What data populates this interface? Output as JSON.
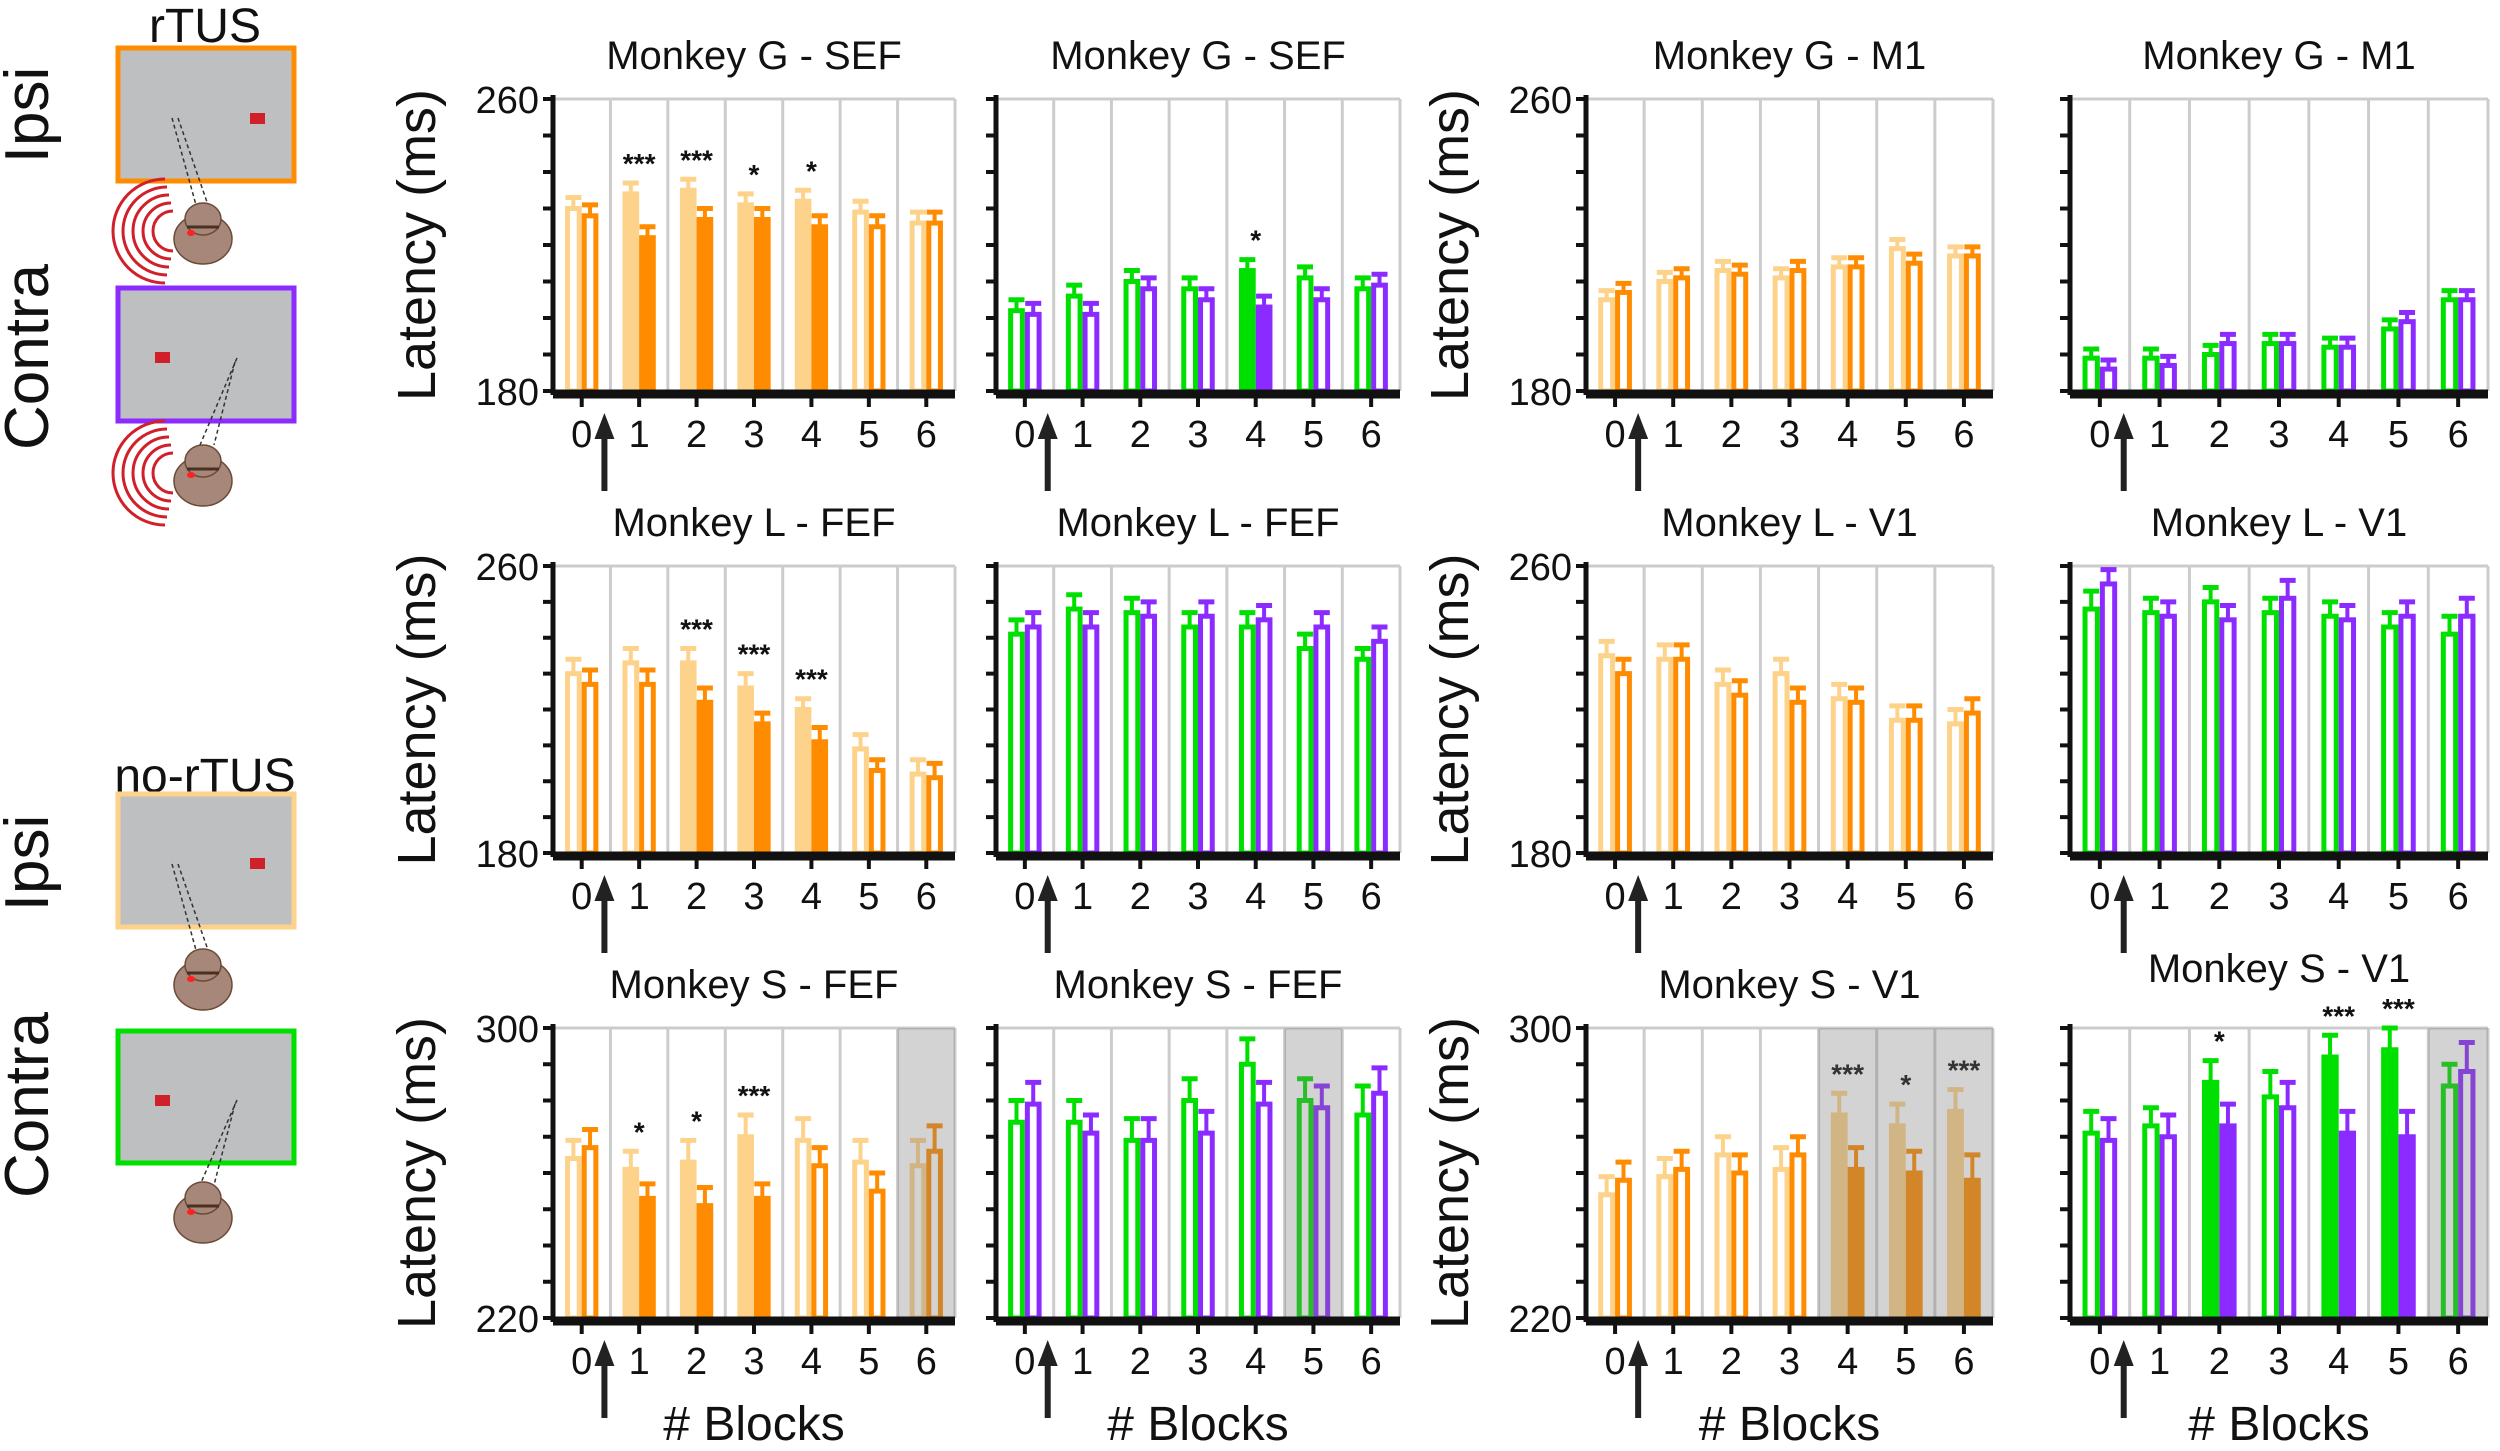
{
  "schematic": {
    "rtus_label": "rTUS",
    "no_rtus_label": "no-rTUS",
    "ipsi_label_1": "Ipsi",
    "contra_label_1": "Contra",
    "ipsi_label_2": "Ipsi",
    "contra_label_2": "Contra",
    "colors": {
      "rtus_ipsi": "#FF8C00",
      "rtus_contra": "#8B2BFF",
      "no_rtus_ipsi": "#FDD28A",
      "no_rtus_contra": "#00E000",
      "screen": "#BEBFC1",
      "target": "#D0202A",
      "head": "#A6877A",
      "waves": "#D0202A"
    }
  },
  "chart_data": [
    {
      "type": "bar",
      "title": "Monkey G - SEF",
      "ylabel": "Latency (ms)",
      "xlabel": "",
      "ylim": [
        180,
        260
      ],
      "yticklabels": [
        "180",
        "260"
      ],
      "categories": [
        "0",
        "1",
        "2",
        "3",
        "4",
        "5",
        "6"
      ],
      "shaded": [],
      "stars": [
        "",
        "***",
        "***",
        "*",
        "*",
        "",
        ""
      ],
      "series": [
        {
          "color": "#FDD28A",
          "values": [
            230,
            234,
            235,
            231,
            232,
            229,
            226
          ],
          "err": [
            3,
            3,
            3,
            3,
            3,
            3,
            3
          ],
          "filled": [
            0,
            1,
            1,
            1,
            1,
            0,
            0
          ]
        },
        {
          "color": "#FF8C00",
          "values": [
            228,
            222,
            227,
            227,
            225,
            225,
            226
          ],
          "err": [
            3,
            3,
            3,
            3,
            3,
            3,
            3
          ],
          "filled": [
            0,
            1,
            1,
            1,
            1,
            0,
            0
          ]
        }
      ]
    },
    {
      "type": "bar",
      "title": "Monkey G - SEF",
      "ylabel": "",
      "xlabel": "",
      "ylim": [
        180,
        260
      ],
      "yticklabels": [],
      "categories": [
        "0",
        "1",
        "2",
        "3",
        "4",
        "5",
        "6"
      ],
      "shaded": [],
      "stars": [
        "",
        "",
        "",
        "",
        "*",
        "",
        ""
      ],
      "series": [
        {
          "color": "#00E000",
          "values": [
            202,
            206,
            210,
            208,
            213,
            211,
            208
          ],
          "err": [
            3,
            3,
            3,
            3,
            3,
            3,
            3
          ],
          "filled": [
            0,
            0,
            0,
            0,
            1,
            0,
            0
          ]
        },
        {
          "color": "#8B2BFF",
          "values": [
            201,
            201,
            208,
            205,
            203,
            205,
            209
          ],
          "err": [
            3,
            3,
            3,
            3,
            3,
            3,
            3
          ],
          "filled": [
            0,
            0,
            0,
            0,
            1,
            0,
            0
          ]
        }
      ]
    },
    {
      "type": "bar",
      "title": "Monkey G - M1",
      "ylabel": "Latency (ms)",
      "xlabel": "",
      "ylim": [
        180,
        260
      ],
      "yticklabels": [
        "180",
        "260"
      ],
      "categories": [
        "0",
        "1",
        "2",
        "3",
        "4",
        "5",
        "6"
      ],
      "shaded": [],
      "stars": [
        "",
        "",
        "",
        "",
        "",
        "",
        ""
      ],
      "series": [
        {
          "color": "#FDD28A",
          "values": [
            205,
            210,
            213,
            211,
            214,
            219,
            217
          ],
          "err": [
            2.5,
            2.5,
            2.5,
            2.5,
            2.5,
            2.5,
            2.5
          ],
          "filled": [
            0,
            0,
            0,
            0,
            0,
            0,
            0
          ]
        },
        {
          "color": "#FF8C00",
          "values": [
            207,
            211,
            212,
            213,
            214,
            215,
            217
          ],
          "err": [
            2.5,
            2.5,
            2.5,
            2.5,
            2.5,
            2.5,
            2.5
          ],
          "filled": [
            0,
            0,
            0,
            0,
            0,
            0,
            0
          ]
        }
      ]
    },
    {
      "type": "bar",
      "title": "Monkey G - M1",
      "ylabel": "",
      "xlabel": "",
      "ylim": [
        180,
        260
      ],
      "yticklabels": [],
      "categories": [
        "0",
        "1",
        "2",
        "3",
        "4",
        "5",
        "6"
      ],
      "shaded": [],
      "stars": [
        "",
        "",
        "",
        "",
        "",
        "",
        ""
      ],
      "series": [
        {
          "color": "#00E000",
          "values": [
            189,
            189,
            190,
            193,
            192,
            197,
            205
          ],
          "err": [
            2.5,
            2.5,
            2.5,
            2.5,
            2.5,
            2.5,
            2.5
          ],
          "filled": [
            0,
            0,
            0,
            0,
            0,
            0,
            0
          ]
        },
        {
          "color": "#8B2BFF",
          "values": [
            186,
            187,
            193,
            193,
            192,
            199,
            205
          ],
          "err": [
            2.5,
            2.5,
            2.5,
            2.5,
            2.5,
            2.5,
            2.5
          ],
          "filled": [
            0,
            0,
            0,
            0,
            0,
            0,
            0
          ]
        }
      ]
    },
    {
      "type": "bar",
      "title": "Monkey L - FEF",
      "ylabel": "Latency (ms)",
      "xlabel": "",
      "ylim": [
        180,
        260
      ],
      "yticklabels": [
        "180",
        "260"
      ],
      "categories": [
        "0",
        "1",
        "2",
        "3",
        "4",
        "5",
        "6"
      ],
      "shaded": [],
      "stars": [
        "",
        "",
        "***",
        "***",
        "***",
        "",
        ""
      ],
      "series": [
        {
          "color": "#FDD28A",
          "values": [
            230,
            233,
            233,
            226,
            220,
            209,
            202
          ],
          "err": [
            4,
            4,
            4,
            4,
            3,
            4,
            4
          ],
          "filled": [
            0,
            0,
            1,
            1,
            1,
            0,
            0
          ]
        },
        {
          "color": "#FF8C00",
          "values": [
            227,
            227,
            222,
            216,
            211,
            203,
            201
          ],
          "err": [
            4,
            4,
            4,
            3,
            4,
            3,
            4
          ],
          "filled": [
            0,
            0,
            1,
            1,
            1,
            0,
            0
          ]
        }
      ]
    },
    {
      "type": "bar",
      "title": "Monkey L - FEF",
      "ylabel": "",
      "xlabel": "",
      "ylim": [
        180,
        260
      ],
      "yticklabels": [],
      "categories": [
        "0",
        "1",
        "2",
        "3",
        "4",
        "5",
        "6"
      ],
      "shaded": [],
      "stars": [
        "",
        "",
        "",
        "",
        "",
        "",
        ""
      ],
      "series": [
        {
          "color": "#00E000",
          "values": [
            241,
            248,
            247,
            243,
            243,
            237,
            234
          ],
          "err": [
            4,
            4,
            4,
            4,
            4,
            4,
            3
          ],
          "filled": [
            0,
            0,
            0,
            0,
            0,
            0,
            0
          ]
        },
        {
          "color": "#8B2BFF",
          "values": [
            243,
            243,
            246,
            246,
            245,
            243,
            239
          ],
          "err": [
            4,
            4,
            4,
            4,
            4,
            4,
            4
          ],
          "filled": [
            0,
            0,
            0,
            0,
            0,
            0,
            0
          ]
        }
      ]
    },
    {
      "type": "bar",
      "title": "Monkey L - V1",
      "ylabel": "Latency (ms)",
      "xlabel": "",
      "ylim": [
        180,
        260
      ],
      "yticklabels": [
        "180",
        "260"
      ],
      "categories": [
        "0",
        "1",
        "2",
        "3",
        "4",
        "5",
        "6"
      ],
      "shaded": [],
      "stars": [
        "",
        "",
        "",
        "",
        "",
        "",
        ""
      ],
      "series": [
        {
          "color": "#FDD28A",
          "values": [
            235,
            234,
            227,
            230,
            223,
            217,
            216
          ],
          "err": [
            4,
            4,
            4,
            4,
            4,
            4,
            4
          ],
          "filled": [
            0,
            0,
            0,
            0,
            0,
            0,
            0
          ]
        },
        {
          "color": "#FF8C00",
          "values": [
            230,
            234,
            224,
            222,
            222,
            217,
            219
          ],
          "err": [
            4,
            4,
            4,
            4,
            4,
            4,
            4
          ],
          "filled": [
            0,
            0,
            0,
            0,
            0,
            0,
            0
          ]
        }
      ]
    },
    {
      "type": "bar",
      "title": "Monkey L - V1",
      "ylabel": "",
      "xlabel": "",
      "ylim": [
        180,
        260
      ],
      "yticklabels": [],
      "categories": [
        "0",
        "1",
        "2",
        "3",
        "4",
        "5",
        "6"
      ],
      "shaded": [],
      "stars": [
        "",
        "",
        "",
        "",
        "",
        "",
        ""
      ],
      "series": [
        {
          "color": "#00E000",
          "values": [
            248,
            247,
            250,
            247,
            246,
            243,
            241
          ],
          "err": [
            5,
            4,
            4,
            4,
            4,
            4,
            5
          ],
          "filled": [
            0,
            0,
            0,
            0,
            0,
            0,
            0
          ]
        },
        {
          "color": "#8B2BFF",
          "values": [
            255,
            246,
            245,
            251,
            245,
            246,
            246
          ],
          "err": [
            4,
            4,
            4,
            5,
            4,
            4,
            5
          ],
          "filled": [
            0,
            0,
            0,
            0,
            0,
            0,
            0
          ]
        }
      ]
    },
    {
      "type": "bar",
      "title": "Monkey S - FEF",
      "ylabel": "Latency (ms)",
      "xlabel": "# Blocks",
      "ylim": [
        220,
        300
      ],
      "yticklabels": [
        "220",
        "300"
      ],
      "categories": [
        "0",
        "1",
        "2",
        "3",
        "4",
        "5",
        "6"
      ],
      "shaded": [
        6
      ],
      "stars": [
        "",
        "*",
        "*",
        "***",
        "",
        "",
        ""
      ],
      "series": [
        {
          "color": "#FDD28A",
          "values": [
            264,
            261,
            263,
            270,
            269,
            263,
            262
          ],
          "err": [
            5,
            5,
            6,
            6,
            6,
            6,
            7
          ],
          "filled": [
            0,
            1,
            1,
            1,
            0,
            0,
            0
          ]
        },
        {
          "color": "#FF8C00",
          "values": [
            267,
            253,
            251,
            253,
            262,
            255,
            266
          ],
          "err": [
            5,
            4,
            5,
            4,
            5,
            5,
            7
          ],
          "filled": [
            0,
            1,
            1,
            1,
            0,
            0,
            0
          ]
        }
      ]
    },
    {
      "type": "bar",
      "title": "Monkey S - FEF",
      "ylabel": "",
      "xlabel": "# Blocks",
      "ylim": [
        220,
        300
      ],
      "yticklabels": [],
      "categories": [
        "0",
        "1",
        "2",
        "3",
        "4",
        "5",
        "6"
      ],
      "shaded": [
        5
      ],
      "stars": [
        "",
        "",
        "",
        "",
        "",
        "",
        ""
      ],
      "series": [
        {
          "color": "#00E000",
          "values": [
            274,
            274,
            269,
            280,
            290,
            280,
            276
          ],
          "err": [
            6,
            6,
            6,
            6,
            7,
            6,
            8
          ],
          "filled": [
            0,
            0,
            0,
            0,
            0,
            0,
            0
          ]
        },
        {
          "color": "#8B2BFF",
          "values": [
            279,
            271,
            269,
            271,
            279,
            278,
            282
          ],
          "err": [
            6,
            5,
            6,
            6,
            6,
            6,
            7
          ],
          "filled": [
            0,
            0,
            0,
            0,
            0,
            0,
            0
          ]
        }
      ]
    },
    {
      "type": "bar",
      "title": "Monkey S - V1",
      "ylabel": "Latency (ms)",
      "xlabel": "# Blocks",
      "ylim": [
        220,
        300
      ],
      "yticklabels": [
        "220",
        "300"
      ],
      "categories": [
        "0",
        "1",
        "2",
        "3",
        "4",
        "5",
        "6"
      ],
      "shaded": [
        4,
        5,
        6
      ],
      "stars": [
        "",
        "",
        "",
        "",
        "***",
        "*",
        "***"
      ],
      "series": [
        {
          "color": "#FDD28A",
          "values": [
            254,
            259,
            265,
            261,
            276,
            273,
            277
          ],
          "err": [
            5,
            5,
            5,
            6,
            6,
            6,
            6
          ],
          "filled": [
            0,
            0,
            0,
            0,
            1,
            1,
            1
          ]
        },
        {
          "color": "#FF8C00",
          "values": [
            258,
            261,
            260,
            265,
            261,
            260,
            258
          ],
          "err": [
            5,
            5,
            5,
            5,
            6,
            6,
            7
          ],
          "filled": [
            0,
            0,
            0,
            0,
            1,
            1,
            1
          ]
        }
      ]
    },
    {
      "type": "bar",
      "title": "Monkey S - V1",
      "ylabel": "",
      "xlabel": "# Blocks",
      "ylim": [
        220,
        300
      ],
      "yticklabels": [],
      "categories": [
        "0",
        "1",
        "2",
        "3",
        "4",
        "5",
        "6"
      ],
      "shaded": [
        6
      ],
      "stars": [
        "",
        "",
        "*",
        "",
        "***",
        "***",
        ""
      ],
      "series": [
        {
          "color": "#00E000",
          "values": [
            271,
            273,
            285,
            281,
            292,
            294,
            284
          ],
          "err": [
            6,
            5,
            6,
            7,
            6,
            6,
            6
          ],
          "filled": [
            0,
            0,
            1,
            0,
            1,
            1,
            0
          ]
        },
        {
          "color": "#8B2BFF",
          "values": [
            269,
            270,
            273,
            278,
            271,
            270,
            288
          ],
          "err": [
            6,
            6,
            6,
            7,
            6,
            7,
            8
          ],
          "filled": [
            0,
            0,
            1,
            0,
            1,
            1,
            0
          ]
        }
      ]
    }
  ]
}
